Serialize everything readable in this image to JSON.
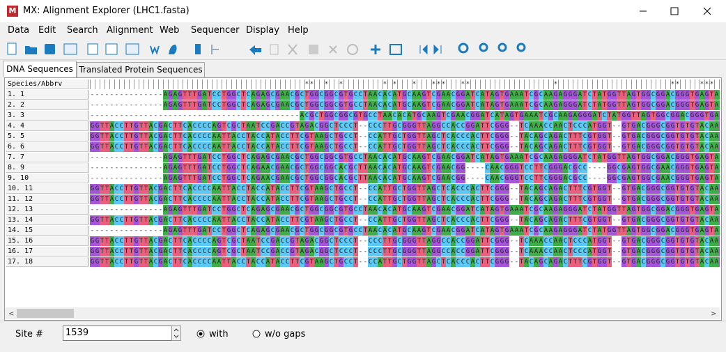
{
  "window": {
    "title": "MX: Alignment Explorer (LHC1.fasta)"
  },
  "menu": [
    "Data",
    "Edit",
    "Search",
    "Alignment",
    "Web",
    "Sequencer",
    "Display",
    "Help"
  ],
  "tabs": [
    "DNA Sequences",
    "Translated Protein Sequences"
  ],
  "alignment": {
    "header": "Species/Abbrv",
    "conservation": "                                            **  *  *        * *   *   ***   **                 *                       **    *** ",
    "base_colors": {
      "A": "#3fae49",
      "C": "#5bc8f5",
      "G": "#a455d8",
      "T": "#e8607e",
      "-": "#ffffff"
    },
    "rows": [
      {
        "label": "1. 1",
        "seq": "---------------AGAGTTTGATCCTGGCTCAGAGCGAACGCTGGCGGCGTGCCTAACACATGCAAGTCGAACGGATCATAGTGAAATCGCAAGAGGGATCTATGGTTAGTGGCGGACGGGTGAGTAA"
      },
      {
        "label": "2. 2",
        "seq": "---------------AGAGTTTGATCCTGGCTCAGAGCGAACGCTGGCGGCGTGCCTAACACATGCAAGTCGAACGGATCATAGTGAAATCGCAAGAGGGATCTATGGTTAGTGGCGGACGGGTGAGTAA"
      },
      {
        "label": "3. 3",
        "seq": "-------------------------------------------ACGCTGGCGGCGTGCCTAACACATGCAAGTCGAACGGATCATAGTGAAATCGCAAGAGGGATCTATGGTTAGTGGCGGACGGGTGAGTAA"
      },
      {
        "label": "4. 4",
        "seq": "GGTTACCTTGTTACGACTTCACCCCAGTCGCTAATCCGACCGTAGACGGCTCCCT--CCCTTGCGGGTTAGGCCACCGGATTCGGG--TCAAACCAACTCCCATGGT--GTGACGGGCGGTGTGTACAAG"
      },
      {
        "label": "5. 5",
        "seq": "GGTTACCTTGTTACGACTTCACCCCAATTACCTACCATACCTTCGTAAGCTGCCT--CCATTGCTGGTTAGCTCACCCACTTCGGG--TACAGCAGACTTTCGTGGT--GTGACGGGCGGTGTGTACAAG"
      },
      {
        "label": "6. 6",
        "seq": "GGTTACCTTGTTACGACTTCACCCCAATTACCTACCATACCTTCGTAAGCTGCCT--CCATTGCTGGTTAGCTCACCCACTTCGGG--TACAGCAGACTTTCGTGGT--GTGACGGGCGGTGTGTACAAG"
      },
      {
        "label": "7. 7",
        "seq": "---------------AGAGTTTGATCCTGGCTCAGAGCGAACGCTGGCGGCGTGCCTAACACATGCAAGTCGAACGGATCATAGTGAAATCGCAAGAGGGATCTATGGTTAGTGGCGGACGGGTGAGTAA"
      },
      {
        "label": "8. 9",
        "seq": "---------------AGAGTTTGATCCTGGCTCAGAACGAACGCTGGCGGCACGCTTAACACATGCAAGTCGAACGG----CAACGGGTCCTTCGGGACGCC----GGCGAGTGGCGAACGGGTGAGTAA"
      },
      {
        "label": "9. 10",
        "seq": "---------------AGAGTTTGATCCTGGCTCAGAACGAACGCTGGCGGCACGCTTAACACATGCAAGTCGAACGG----CAACGGGTCCTTCGGGACGCC----GGCGAGTGGCGAACGGGTGAGTAA"
      },
      {
        "label": "10. 11",
        "seq": "GGTTACCTTGTTACGACTTCACCCCAATTACCTACCATACCTTCGTAAGCTGCCT--CCATTGCTGGTTAGCTCACCCACTTCGGG--TACAGCAGACTTTCGTGGT--GTGACGGGCGGTGTGTACAAG"
      },
      {
        "label": "11. 12",
        "seq": "GGTTACCTTGTTACGACTTCACCCCAATTACCTACCATACCTTCGTAAGCTGCCT--CCATTGCTGGTTAGCTCACCCACTTCGGG--TACAGCAGACTTTCGTGGT--GTGACGGGCGGTGTGTACAAG"
      },
      {
        "label": "12. 13",
        "seq": "---------------AGAGTTTGATCCTGGCTCAGAGCGAACGCTGGCGGCGTGCCTAACACATGCAAGTCGAACGGATCATAGTGAAATCGCAAGAGGGATCTATGGTTAGTGGCGGACGGGTGAGTAA"
      },
      {
        "label": "13. 14",
        "seq": "GGTTACCTTGTTACGACTTCACCCCAATTACCTACCATACCTTCGTAAGCTGCCT--CCATTGCTGGTTAGCTCACCCACTTCGGG--TACAGCAGACTTTCGTGGT--GTGACGGGCGGTGTGTACAAG"
      },
      {
        "label": "14. 15",
        "seq": "---------------AGAGTTTGATCCTGGCTCAGAGCGAACGCTGGCGGCGTGCCTAACACATGCAAGTCGAACGGATCATAGTGAAATCGCAAGAGGGATCTATGGTTAGTGGCGGACGGGTGAGTAA"
      },
      {
        "label": "15. 16",
        "seq": "GGTTACCTTGTTACGACTTCACCCCAGTCGCTAATCCGACCGTAGACGGCTCCCT--CCCTTGCGGGTTAGGCCACCGGATTCGGG--TCAAACCAACTCCCATGGT--GTGACGGGCGGTGTGTACAAG"
      },
      {
        "label": "16. 17",
        "seq": "GGTTACCTTGTTACGACTTCACCCCAGTCGCTAATCCGACCGTAGACGGCTCCCT--CCCTTGCGGGTTAGGCCACCGGATTCGGG--TCAAACCAACTCCCATGGT--GTGACGGGCGGTGTGTACAAG"
      },
      {
        "label": "17. 18",
        "seq": "GGTTACCTTGTTACGACTTCACCCCAATTACCTACCATACCTTCGTAAGCTGCCT--CCATTGCTGGTTAGCTCACCCACTTCGGG--TACAGCAGACTTTCGTGGT--GTGACGGGCGGTGTGTACAAG"
      }
    ]
  },
  "footer": {
    "site_label": "Site #",
    "site_value": "1539",
    "options": [
      "with",
      "w/o gaps"
    ]
  }
}
